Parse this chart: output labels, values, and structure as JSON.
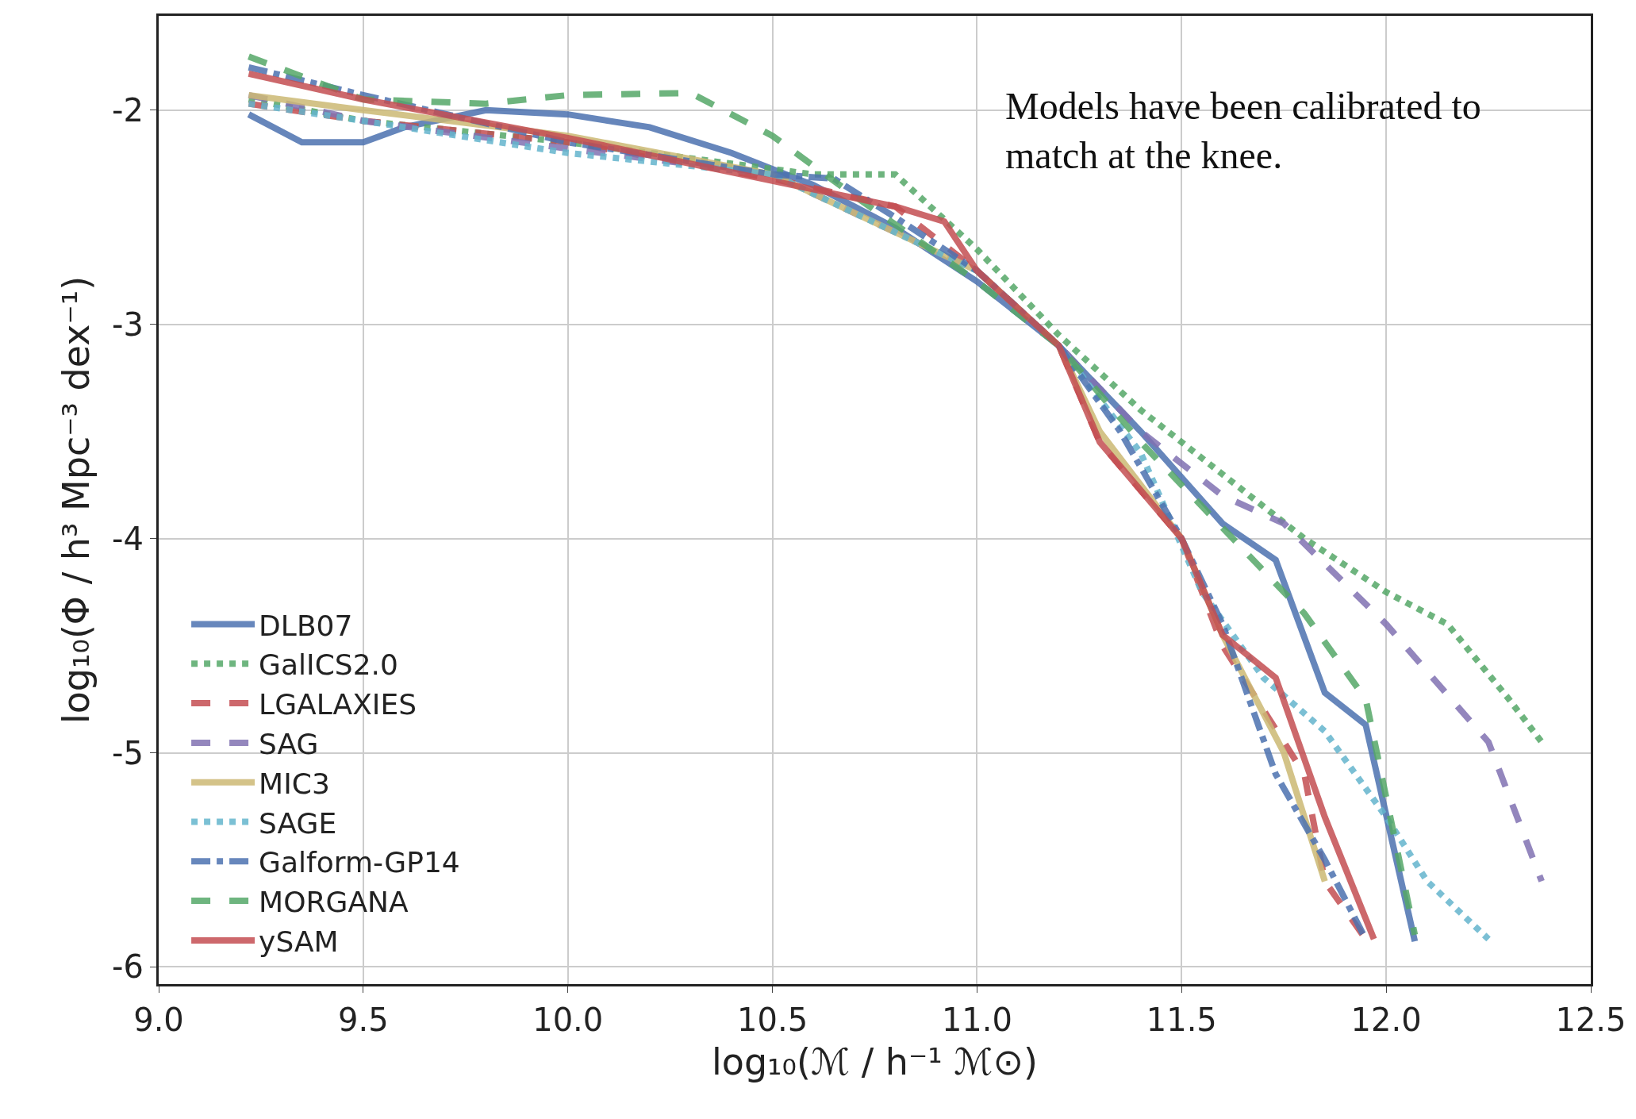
{
  "chart_data": {
    "type": "line",
    "xlabel": "log₁₀(ℳ / h⁻¹ ℳ⊙)",
    "ylabel": "log₁₀(Φ / h³ Mpc⁻³ dex⁻¹)",
    "annotations": [
      "Models have been calibrated to match at the knee."
    ],
    "xlim": [
      9.0,
      12.5
    ],
    "xticks": [
      {
        "value": 9.0,
        "label": "9.0"
      },
      {
        "value": 9.5,
        "label": "9.5"
      },
      {
        "value": 10.0,
        "label": "10.0"
      },
      {
        "value": 10.5,
        "label": "10.5"
      },
      {
        "value": 11.0,
        "label": "11.0"
      },
      {
        "value": 11.5,
        "label": "11.5"
      },
      {
        "value": 12.0,
        "label": "12.0"
      },
      {
        "value": 12.5,
        "label": "12.5"
      }
    ],
    "ylim": [
      -6.08,
      -1.56
    ],
    "yticks": [
      -6,
      -5,
      -4,
      -3,
      -2
    ],
    "grid": true,
    "legend": "bottom left",
    "marker": "none",
    "series": [
      {
        "name": "DLB07",
        "color": "#4c72b0",
        "line_style": "solid",
        "x": [
          9.22,
          9.35,
          9.5,
          9.6,
          9.8,
          10.0,
          10.2,
          10.4,
          10.6,
          10.8,
          11.0,
          11.2,
          11.4,
          11.6,
          11.73,
          11.85,
          11.95,
          12.07
        ],
        "values": [
          -2.02,
          -2.15,
          -2.15,
          -2.08,
          -2.0,
          -2.02,
          -2.08,
          -2.2,
          -2.35,
          -2.55,
          -2.8,
          -3.1,
          -3.5,
          -3.93,
          -4.1,
          -4.72,
          -4.87,
          -5.88
        ]
      },
      {
        "name": "GalICS2.0",
        "color": "#55a868",
        "line_style": "dotted",
        "x": [
          9.22,
          9.5,
          10.0,
          10.4,
          10.6,
          10.8,
          11.0,
          11.2,
          11.4,
          11.6,
          11.8,
          12.0,
          12.15,
          12.3,
          12.38
        ],
        "values": [
          -1.95,
          -2.05,
          -2.15,
          -2.25,
          -2.3,
          -2.3,
          -2.65,
          -3.05,
          -3.4,
          -3.7,
          -4.0,
          -4.25,
          -4.4,
          -4.75,
          -4.95
        ]
      },
      {
        "name": "LGALAXIES",
        "color": "#c44e52",
        "line_style": "dashed",
        "x": [
          9.22,
          9.5,
          10.0,
          10.5,
          10.8,
          11.0,
          11.2,
          11.3,
          11.5,
          11.6,
          11.8,
          11.85,
          11.95
        ],
        "values": [
          -1.97,
          -2.05,
          -2.15,
          -2.32,
          -2.45,
          -2.75,
          -3.1,
          -3.55,
          -4.0,
          -4.5,
          -5.1,
          -5.6,
          -5.87
        ]
      },
      {
        "name": "SAG",
        "color": "#8172b2",
        "line_style": "dashed",
        "x": [
          9.22,
          9.5,
          10.0,
          10.5,
          11.0,
          11.2,
          11.4,
          11.6,
          11.75,
          12.0,
          12.25,
          12.38
        ],
        "values": [
          -1.93,
          -2.05,
          -2.18,
          -2.3,
          -2.75,
          -3.1,
          -3.5,
          -3.8,
          -3.93,
          -4.4,
          -4.95,
          -5.6
        ]
      },
      {
        "name": "MIC3",
        "color": "#ccb974",
        "line_style": "solid",
        "x": [
          9.22,
          9.5,
          10.0,
          10.5,
          11.0,
          11.2,
          11.3,
          11.5,
          11.6,
          11.75,
          11.85
        ],
        "values": [
          -1.93,
          -2.0,
          -2.12,
          -2.3,
          -2.75,
          -3.1,
          -3.5,
          -4.0,
          -4.45,
          -5.0,
          -5.6
        ]
      },
      {
        "name": "SAGE",
        "color": "#64b5cd",
        "line_style": "dotted",
        "x": [
          9.22,
          9.5,
          10.0,
          10.5,
          11.0,
          11.2,
          11.4,
          11.55,
          11.7,
          11.85,
          12.0,
          12.1,
          12.25
        ],
        "values": [
          -1.97,
          -2.05,
          -2.2,
          -2.3,
          -2.75,
          -3.1,
          -3.6,
          -4.25,
          -4.65,
          -4.9,
          -5.3,
          -5.6,
          -5.87
        ]
      },
      {
        "name": "Galform-GP14",
        "color": "#4c72b0",
        "line_style": "dashdot",
        "x": [
          9.22,
          9.5,
          10.0,
          10.5,
          10.65,
          10.8,
          11.0,
          11.2,
          11.35,
          11.5,
          11.6,
          11.73,
          11.85,
          11.95
        ],
        "values": [
          -1.8,
          -1.93,
          -2.15,
          -2.3,
          -2.32,
          -2.5,
          -2.75,
          -3.1,
          -3.5,
          -4.0,
          -4.4,
          -5.1,
          -5.5,
          -5.87
        ]
      },
      {
        "name": "MORGANA",
        "color": "#55a868",
        "line_style": "dashed",
        "x": [
          9.22,
          9.5,
          9.8,
          10.0,
          10.3,
          10.5,
          10.7,
          11.0,
          11.2,
          11.4,
          11.6,
          11.8,
          11.95,
          12.07
        ],
        "values": [
          -1.75,
          -1.95,
          -1.97,
          -1.93,
          -1.92,
          -2.12,
          -2.4,
          -2.8,
          -3.1,
          -3.55,
          -3.95,
          -4.35,
          -4.75,
          -5.85
        ]
      },
      {
        "name": "ySAM",
        "color": "#c44e52",
        "line_style": "solid",
        "x": [
          9.22,
          9.5,
          10.0,
          10.5,
          10.8,
          10.92,
          11.0,
          11.2,
          11.3,
          11.5,
          11.6,
          11.73,
          11.85,
          11.97
        ],
        "values": [
          -1.83,
          -1.95,
          -2.13,
          -2.33,
          -2.45,
          -2.52,
          -2.75,
          -3.1,
          -3.55,
          -4.0,
          -4.45,
          -4.65,
          -5.3,
          -5.87
        ]
      }
    ]
  }
}
